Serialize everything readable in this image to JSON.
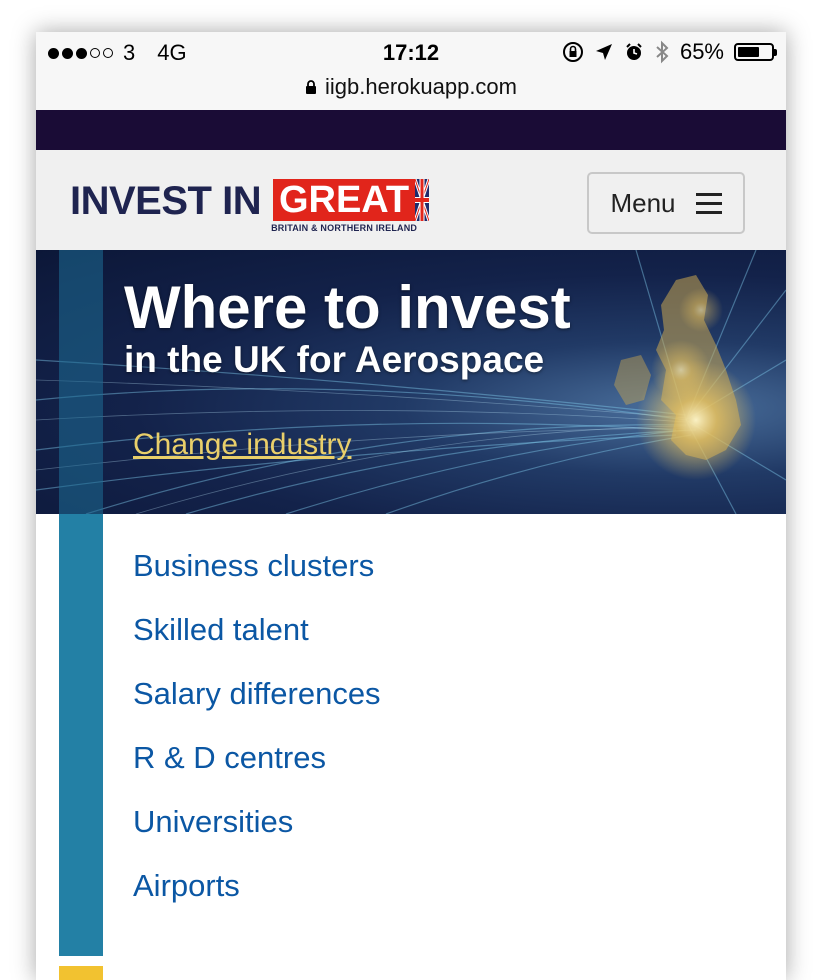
{
  "status_bar": {
    "carrier": "3",
    "network": "4G",
    "time": "17:12",
    "battery_percent": "65%",
    "battery_level": 0.65
  },
  "url_bar": {
    "url": "iigb.herokuapp.com"
  },
  "header": {
    "logo_invest": "INVEST IN",
    "logo_great": "GREAT",
    "logo_sub": "BRITAIN & NORTHERN IRELAND",
    "menu_label": "Menu"
  },
  "hero": {
    "title": "Where to invest",
    "subtitle": "in the UK for Aerospace",
    "change_link": "Change industry"
  },
  "nav_items": [
    "Business clusters",
    "Skilled talent",
    "Salary differences",
    "R & D centres",
    "Universities",
    "Airports"
  ],
  "colors": {
    "header_strip": "#1a0c36",
    "brand_navy": "#1f2450",
    "brand_red": "#e1251b",
    "link_blue": "#0b57a4",
    "side_bar_teal": "#2380a5",
    "accent_yellow": "#f2c230",
    "hero_link_gold": "#e9cf6a"
  }
}
